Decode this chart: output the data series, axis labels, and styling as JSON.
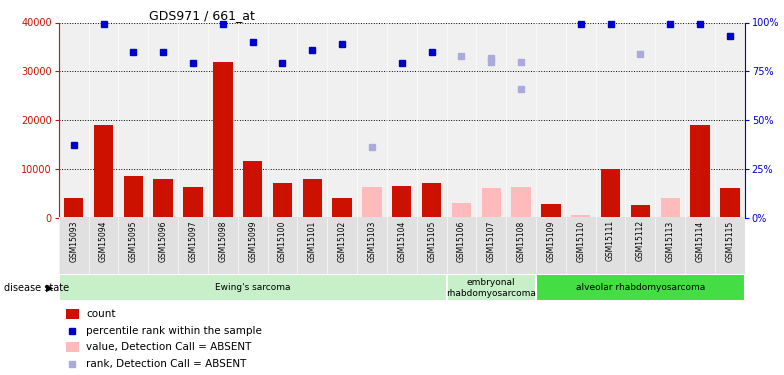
{
  "title": "GDS971 / 661_at",
  "samples": [
    "GSM15093",
    "GSM15094",
    "GSM15095",
    "GSM15096",
    "GSM15097",
    "GSM15098",
    "GSM15099",
    "GSM15100",
    "GSM15101",
    "GSM15102",
    "GSM15103",
    "GSM15104",
    "GSM15105",
    "GSM15106",
    "GSM15107",
    "GSM15108",
    "GSM15109",
    "GSM15110",
    "GSM15111",
    "GSM15112",
    "GSM15113",
    "GSM15114",
    "GSM15115"
  ],
  "count_red": [
    4000,
    19000,
    8500,
    7800,
    6200,
    32000,
    11500,
    7000,
    7800,
    4000,
    null,
    6500,
    7000,
    null,
    null,
    null,
    2800,
    null,
    10000,
    2500,
    null,
    19000,
    6000
  ],
  "count_pink": [
    null,
    null,
    null,
    null,
    null,
    null,
    null,
    null,
    null,
    null,
    6200,
    null,
    null,
    3000,
    6000,
    6200,
    null,
    500,
    null,
    null,
    4000,
    null,
    null
  ],
  "rank_blue": [
    37,
    99,
    85,
    85,
    79,
    99,
    90,
    79,
    86,
    89,
    null,
    79,
    85,
    null,
    null,
    null,
    null,
    99,
    99,
    null,
    99,
    99,
    93
  ],
  "rank_lblue": [
    null,
    null,
    null,
    null,
    null,
    null,
    null,
    null,
    null,
    null,
    36,
    null,
    null,
    83,
    80,
    80,
    null,
    null,
    null,
    84,
    null,
    null,
    null
  ],
  "rank_lblue2": [
    null,
    null,
    null,
    null,
    null,
    null,
    null,
    null,
    null,
    null,
    null,
    null,
    null,
    null,
    82,
    66,
    null,
    null,
    null,
    null,
    null,
    null,
    null
  ],
  "disease_groups": [
    {
      "label": "Ewing's sarcoma",
      "start": 0,
      "end": 13,
      "color": "#c8f0c8"
    },
    {
      "label": "embryonal\nrhabdomyosarcoma",
      "start": 13,
      "end": 16,
      "color": "#c8f0c8"
    },
    {
      "label": "alveolar rhabdomyosarcoma",
      "start": 16,
      "end": 23,
      "color": "#44dd44"
    }
  ],
  "left_ylim": [
    0,
    40000
  ],
  "right_ylim": [
    0,
    100
  ],
  "left_yticks": [
    0,
    10000,
    20000,
    30000,
    40000
  ],
  "right_yticks": [
    0,
    25,
    50,
    75,
    100
  ],
  "bar_color_red": "#cc1100",
  "bar_color_pink": "#ffbbbb",
  "dot_color_blue": "#0000cc",
  "dot_color_lightblue": "#aaaadd",
  "plot_bg": "#f0f0f0",
  "legend_items": [
    {
      "label": "count",
      "color": "#cc1100",
      "type": "bar"
    },
    {
      "label": "percentile rank within the sample",
      "color": "#0000cc",
      "type": "dot"
    },
    {
      "label": "value, Detection Call = ABSENT",
      "color": "#ffbbbb",
      "type": "bar"
    },
    {
      "label": "rank, Detection Call = ABSENT",
      "color": "#aaaadd",
      "type": "dot"
    }
  ]
}
